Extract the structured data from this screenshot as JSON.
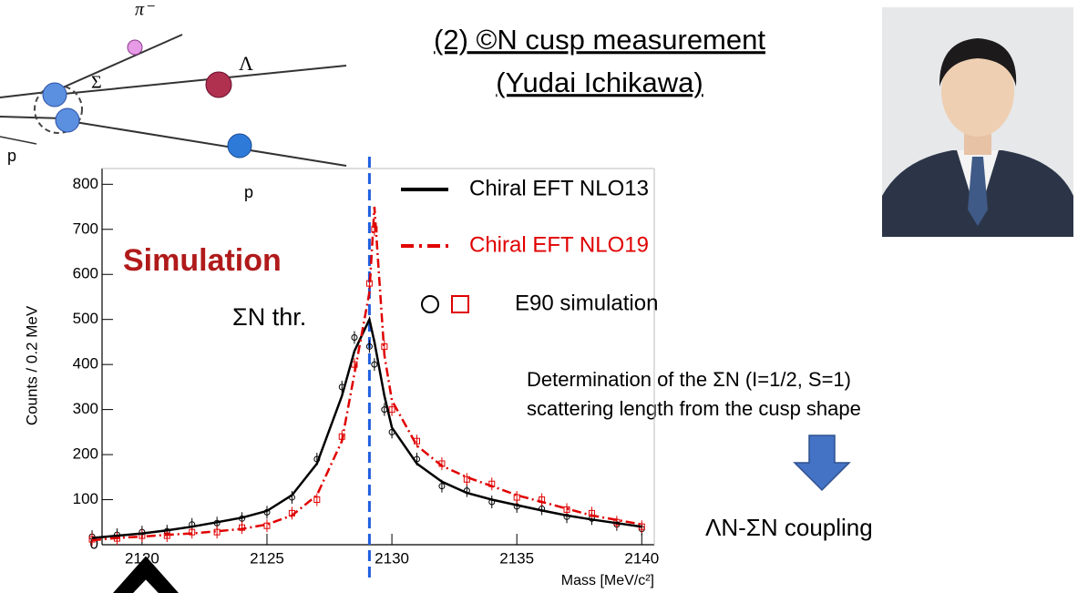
{
  "slide": {
    "title_line1": "(2) ©N cusp measurement",
    "title_line2": "(Yudai Ichikawa)",
    "diagram": {
      "pi": "π⁻",
      "sigma": "Σ",
      "lambda": "Λ",
      "p1": "p",
      "p2": "p"
    },
    "simulation_label": "Simulation",
    "threshold_label": "ΣN thr.",
    "note_line1": "Determination of the ΣN (I=1/2, S=1)",
    "note_line2": "scattering length from the cusp shape",
    "coupling": "ΛN-ΣN coupling"
  },
  "chart_data": {
    "type": "line",
    "x_label": "Mass [MeV/c²]",
    "y_label": "Counts / 0.2 MeV",
    "xlim": [
      2118.4,
      2140.5
    ],
    "ylim": [
      0,
      835
    ],
    "xticks": [
      2120,
      2125,
      2130,
      2135,
      2140
    ],
    "yticks": [
      0,
      100,
      200,
      300,
      400,
      500,
      600,
      700,
      800
    ],
    "threshold": {
      "x": 2129.1,
      "color": "#1f5fe0"
    },
    "x": [
      2118,
      2119,
      2120,
      2121,
      2122,
      2123,
      2124,
      2125,
      2126,
      2127,
      2128,
      2128.5,
      2129.1,
      2129.3,
      2129.7,
      2130,
      2131,
      2132,
      2133,
      2134,
      2135,
      2136,
      2137,
      2138,
      2139,
      2140
    ],
    "series": [
      {
        "name": "Chiral EFT NLO13",
        "color": "#000000",
        "style": "solid",
        "values": [
          15,
          20,
          25,
          32,
          40,
          50,
          60,
          75,
          110,
          180,
          330,
          430,
          500,
          450,
          330,
          260,
          180,
          140,
          115,
          100,
          88,
          76,
          65,
          56,
          48,
          40
        ]
      },
      {
        "name": "Chiral EFT NLO19",
        "color": "#e00000",
        "style": "dashdot",
        "values": [
          10,
          15,
          18,
          22,
          25,
          30,
          35,
          45,
          65,
          110,
          230,
          380,
          560,
          750,
          420,
          320,
          220,
          175,
          150,
          130,
          110,
          95,
          80,
          65,
          55,
          45
        ]
      },
      {
        "name": "E90 simulation",
        "color": "#000000",
        "marker": "circle",
        "values": [
          18,
          22,
          28,
          30,
          45,
          48,
          58,
          72,
          105,
          190,
          350,
          460,
          440,
          400,
          300,
          250,
          190,
          130,
          120,
          95,
          85,
          80,
          62,
          58,
          45,
          35
        ]
      },
      {
        "color": "#e00000",
        "marker": "square",
        "values": [
          12,
          14,
          20,
          20,
          28,
          28,
          38,
          42,
          70,
          100,
          240,
          400,
          580,
          700,
          440,
          300,
          230,
          180,
          145,
          135,
          105,
          100,
          78,
          70,
          50,
          40
        ]
      }
    ]
  }
}
